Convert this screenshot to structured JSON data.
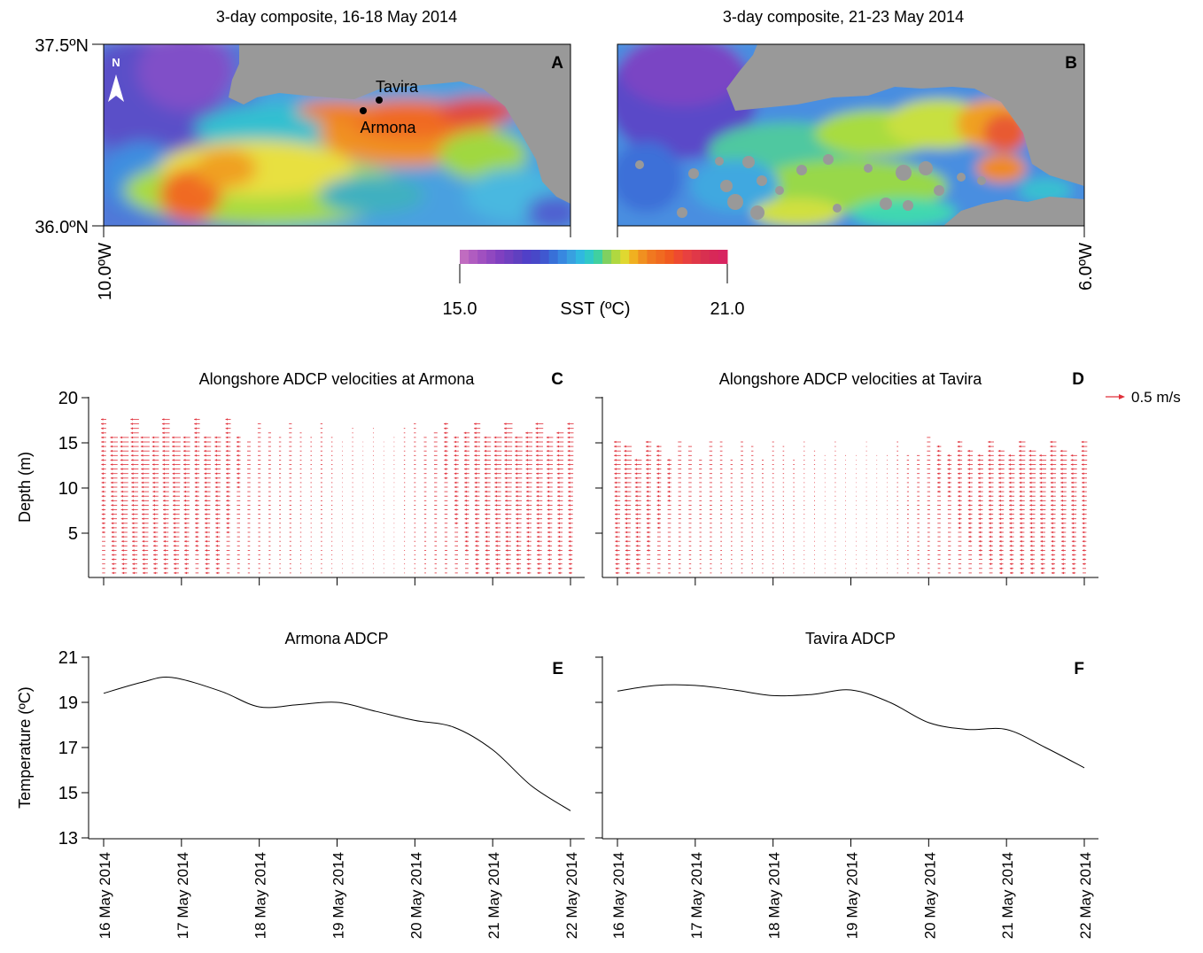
{
  "panels": {
    "A": {
      "letter": "A",
      "title": "3-day composite, 16-18 May 2014"
    },
    "B": {
      "letter": "B",
      "title": "3-day composite, 21-23 May 2014"
    },
    "C": {
      "letter": "C",
      "title": "Alongshore ADCP velocities at Armona"
    },
    "D": {
      "letter": "D",
      "title": "Alongshore ADCP velocities at Tavira"
    },
    "E": {
      "letter": "E",
      "title": "Armona ADCP"
    },
    "F": {
      "letter": "F",
      "title": "Tavira ADCP"
    }
  },
  "map": {
    "lat_labels": [
      "37.5ºN",
      "36.0ºN"
    ],
    "lon_labels": [
      "10.0ºW",
      "6.0ºW"
    ],
    "north_label": "N",
    "stations": [
      {
        "name": "Tavira",
        "lon": -7.6,
        "lat": 37.12
      },
      {
        "name": "Armona",
        "lon": -7.78,
        "lat": 37.03
      }
    ],
    "colorbar": {
      "min_label": "15.0",
      "max_label": "21.0",
      "label": "SST (ºC)"
    }
  },
  "velocity": {
    "ylabel": "Depth (m)",
    "yticks": [
      "5",
      "10",
      "15",
      "20"
    ],
    "scale_label": "0.5 m/s",
    "arrow_color": "#e0303a"
  },
  "temperature": {
    "ylabel": "Temperature (ºC)",
    "yticks": [
      "13",
      "15",
      "17",
      "19",
      "21"
    ]
  },
  "x_dates": [
    "16 May 2014",
    "17 May 2014",
    "18 May 2014",
    "19 May 2014",
    "20 May 2014",
    "21 May 2014",
    "22 May 2014"
  ],
  "chart_data": [
    {
      "type": "line",
      "panel": "E",
      "title": "Armona ADCP",
      "ylabel": "Temperature (ºC)",
      "xlim": [
        "16 May 2014",
        "22 May 2014"
      ],
      "ylim": [
        13,
        21
      ],
      "x": [
        "16 May 2014 00:00",
        "16 May 2014 12:00",
        "16 May 2014 21:00",
        "17 May 2014 12:00",
        "18 May 2014 00:00",
        "18 May 2014 12:00",
        "19 May 2014 00:00",
        "19 May 2014 12:00",
        "20 May 2014 00:00",
        "20 May 2014 12:00",
        "21 May 2014 00:00",
        "21 May 2014 12:00",
        "22 May 2014 00:00"
      ],
      "y": [
        19.4,
        19.9,
        20.1,
        19.5,
        18.8,
        18.9,
        19.0,
        18.6,
        18.2,
        17.9,
        16.9,
        15.3,
        14.2
      ]
    },
    {
      "type": "line",
      "panel": "F",
      "title": "Tavira ADCP",
      "ylabel": "Temperature (ºC)",
      "xlim": [
        "16 May 2014",
        "22 May 2014"
      ],
      "ylim": [
        13,
        21
      ],
      "x": [
        "16 May 2014 00:00",
        "16 May 2014 12:00",
        "17 May 2014 00:00",
        "17 May 2014 12:00",
        "18 May 2014 00:00",
        "18 May 2014 12:00",
        "19 May 2014 00:00",
        "19 May 2014 12:00",
        "20 May 2014 00:00",
        "20 May 2014 12:00",
        "21 May 2014 00:00",
        "21 May 2014 12:00",
        "22 May 2014 00:00"
      ],
      "y": [
        19.5,
        19.75,
        19.75,
        19.55,
        19.3,
        19.35,
        19.55,
        19.0,
        18.1,
        17.8,
        17.8,
        17.0,
        16.1
      ]
    },
    {
      "type": "quiver",
      "panel": "C",
      "title": "Alongshore ADCP velocities at Armona",
      "ylabel": "Depth (m)",
      "ylim": [
        0,
        20
      ],
      "xlim": [
        "16 May 2014",
        "22 May 2014"
      ],
      "profile_top_depth_m": [
        17.5,
        15.5,
        15.5,
        17.5,
        15.5,
        15.5,
        17.5,
        15.5,
        15.5,
        17.5,
        15.5,
        15.5,
        17.5,
        15.5,
        15.0,
        17.0,
        16.0,
        15.5,
        17.0,
        16.0,
        15.5,
        17.0,
        15.5,
        15.0,
        16.5,
        15.0,
        16.5,
        15.0,
        15.5,
        16.5,
        17.0,
        15.5,
        16.0,
        17.0,
        15.5,
        16.0,
        17.0,
        15.5,
        15.5,
        17.0,
        15.5,
        16.0,
        17.0,
        15.5,
        16.0,
        17.0
      ],
      "surface_velocity_ms": [
        -0.15,
        -0.22,
        -0.25,
        -0.24,
        -0.26,
        -0.2,
        -0.22,
        -0.25,
        -0.2,
        -0.16,
        -0.21,
        -0.18,
        -0.15,
        -0.12,
        -0.1,
        -0.09,
        -0.08,
        -0.06,
        -0.08,
        -0.05,
        -0.04,
        -0.06,
        -0.04,
        -0.02,
        -0.03,
        0.0,
        -0.02,
        -0.01,
        -0.02,
        -0.04,
        -0.06,
        -0.08,
        -0.1,
        -0.12,
        -0.14,
        -0.16,
        -0.18,
        -0.2,
        -0.22,
        -0.24,
        -0.22,
        -0.2,
        -0.22,
        -0.19,
        -0.2,
        -0.18
      ]
    },
    {
      "type": "quiver",
      "panel": "D",
      "title": "Alongshore ADCP velocities at Tavira",
      "ylabel": "Depth (m)",
      "ylim": [
        0,
        20
      ],
      "xlim": [
        "16 May 2014",
        "22 May 2014"
      ],
      "profile_top_depth_m": [
        15.0,
        14.5,
        13.0,
        15.0,
        14.5,
        13.0,
        15.0,
        14.5,
        13.0,
        15.0,
        15.0,
        13.0,
        15.0,
        14.5,
        13.0,
        15.0,
        14.5,
        13.0,
        15.0,
        14.0,
        13.5,
        15.0,
        13.5,
        13.5,
        15.0,
        13.5,
        13.5,
        15.0,
        13.5,
        13.5,
        15.5,
        14.5,
        13.5,
        15.0,
        14.0,
        13.5,
        15.0,
        14.0,
        13.5,
        15.0,
        14.0,
        13.5,
        15.0,
        14.0,
        13.5,
        15.0
      ],
      "surface_velocity_ms": [
        -0.2,
        -0.22,
        -0.2,
        -0.16,
        -0.14,
        -0.12,
        -0.1,
        -0.1,
        -0.08,
        -0.09,
        -0.07,
        -0.06,
        -0.07,
        -0.06,
        -0.05,
        -0.05,
        -0.04,
        -0.04,
        -0.03,
        -0.03,
        -0.02,
        -0.03,
        -0.02,
        -0.01,
        -0.02,
        -0.01,
        -0.02,
        -0.04,
        -0.06,
        -0.08,
        -0.1,
        -0.12,
        -0.12,
        -0.14,
        -0.15,
        -0.16,
        -0.17,
        -0.18,
        -0.18,
        -0.19,
        -0.2,
        -0.2,
        -0.18,
        -0.19,
        -0.18,
        -0.17
      ]
    }
  ]
}
